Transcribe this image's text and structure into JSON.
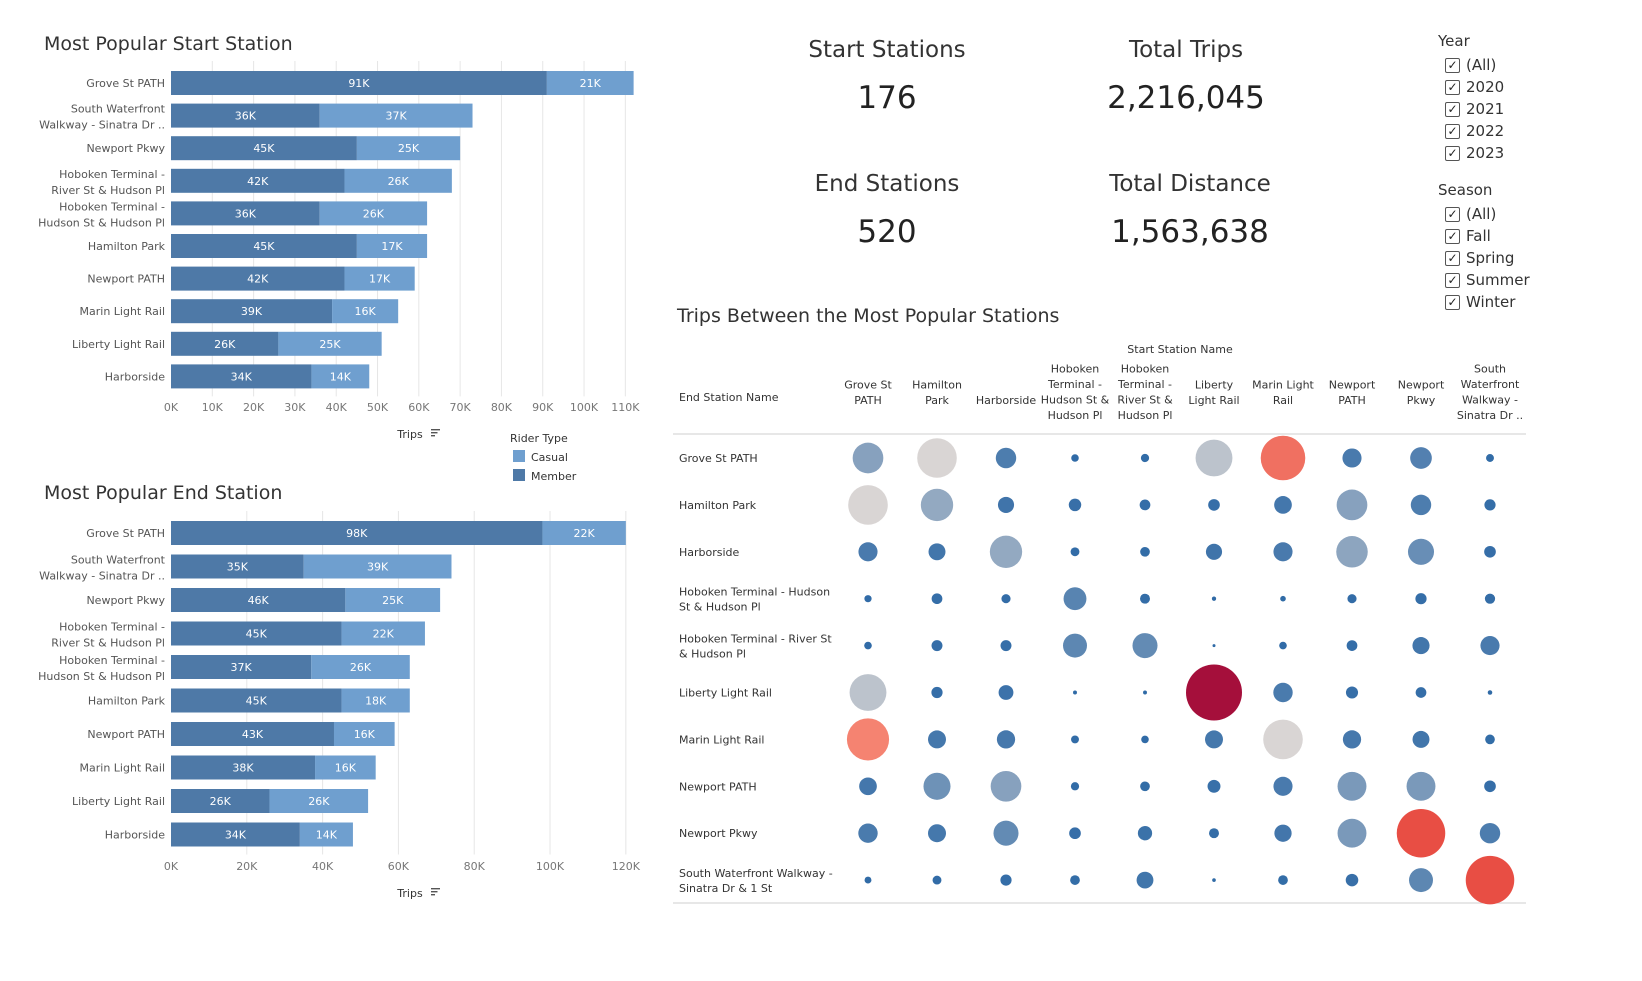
{
  "kpis": {
    "start_stations": {
      "label": "Start Stations",
      "value": "176"
    },
    "total_trips": {
      "label": "Total Trips",
      "value": "2,216,045"
    },
    "end_stations": {
      "label": "End Stations",
      "value": "520"
    },
    "total_distance": {
      "label": "Total Distance",
      "value": "1,563,638"
    }
  },
  "filters": {
    "year": {
      "title": "Year",
      "options": [
        "(All)",
        "2020",
        "2021",
        "2022",
        "2023"
      ]
    },
    "season": {
      "title": "Season",
      "options": [
        "(All)",
        "Fall",
        "Spring",
        "Summer",
        "Winter"
      ]
    }
  },
  "legend": {
    "title": "Rider Type",
    "items": [
      "Casual",
      "Member"
    ]
  },
  "colors": {
    "member": "#4e79a7",
    "casual": "#6f9fcf",
    "text_on_bar": "#ffffff",
    "axis_text": "#777777",
    "grid": "#e6e6e6"
  },
  "chart_data": [
    {
      "type": "bar",
      "orientation": "horizontal",
      "stacked": true,
      "title": "Most Popular Start Station",
      "xlabel": "Trips",
      "xlim": [
        0,
        115000
      ],
      "xticks": [
        "0K",
        "10K",
        "20K",
        "30K",
        "40K",
        "50K",
        "60K",
        "70K",
        "80K",
        "90K",
        "100K",
        "110K"
      ],
      "xtick_values": [
        0,
        10000,
        20000,
        30000,
        40000,
        50000,
        60000,
        70000,
        80000,
        90000,
        100000,
        110000
      ],
      "categories": [
        [
          "Grove St PATH"
        ],
        [
          "South Waterfront",
          "Walkway - Sinatra Dr .."
        ],
        [
          "Newport Pkwy"
        ],
        [
          "Hoboken Terminal -",
          "River St & Hudson Pl"
        ],
        [
          "Hoboken Terminal -",
          "Hudson St & Hudson Pl"
        ],
        [
          "Hamilton Park"
        ],
        [
          "Newport PATH"
        ],
        [
          "Marin Light Rail"
        ],
        [
          "Liberty Light Rail"
        ],
        [
          "Harborside"
        ]
      ],
      "series": [
        {
          "name": "Member",
          "values": [
            91000,
            36000,
            45000,
            42000,
            36000,
            45000,
            42000,
            39000,
            26000,
            34000
          ],
          "labels": [
            "91K",
            "36K",
            "45K",
            "42K",
            "36K",
            "45K",
            "42K",
            "39K",
            "26K",
            "34K"
          ]
        },
        {
          "name": "Casual",
          "values": [
            21000,
            37000,
            25000,
            26000,
            26000,
            17000,
            17000,
            16000,
            25000,
            14000
          ],
          "labels": [
            "21K",
            "37K",
            "25K",
            "26K",
            "26K",
            "17K",
            "17K",
            "16K",
            "25K",
            "14K"
          ]
        }
      ]
    },
    {
      "type": "bar",
      "orientation": "horizontal",
      "stacked": true,
      "title": "Most Popular End Station",
      "xlabel": "Trips",
      "xlim": [
        0,
        124000
      ],
      "xticks": [
        "0K",
        "20K",
        "40K",
        "60K",
        "80K",
        "100K",
        "120K"
      ],
      "xtick_values": [
        0,
        20000,
        40000,
        60000,
        80000,
        100000,
        120000
      ],
      "categories": [
        [
          "Grove St PATH"
        ],
        [
          "South Waterfront",
          "Walkway - Sinatra Dr .."
        ],
        [
          "Newport Pkwy"
        ],
        [
          "Hoboken Terminal -",
          "River St & Hudson Pl"
        ],
        [
          "Hoboken Terminal -",
          "Hudson St & Hudson Pl"
        ],
        [
          "Hamilton Park"
        ],
        [
          "Newport PATH"
        ],
        [
          "Marin Light Rail"
        ],
        [
          "Liberty Light Rail"
        ],
        [
          "Harborside"
        ]
      ],
      "series": [
        {
          "name": "Member",
          "values": [
            98000,
            35000,
            46000,
            45000,
            37000,
            45000,
            43000,
            38000,
            26000,
            34000
          ],
          "labels": [
            "98K",
            "35K",
            "46K",
            "45K",
            "37K",
            "45K",
            "43K",
            "38K",
            "26K",
            "34K"
          ]
        },
        {
          "name": "Casual",
          "values": [
            22000,
            39000,
            25000,
            22000,
            26000,
            18000,
            16000,
            16000,
            26000,
            14000
          ],
          "labels": [
            "22K",
            "39K",
            "25K",
            "22K",
            "26K",
            "18K",
            "16K",
            "16K",
            "26K",
            "14K"
          ]
        }
      ]
    },
    {
      "type": "bubble-matrix",
      "title": "Trips Between the Most Popular Stations",
      "column_header": "Start Station Name",
      "row_header": "End Station Name",
      "columns": [
        [
          "Grove St",
          "PATH"
        ],
        [
          "Hamilton",
          "Park"
        ],
        [
          "Harborside"
        ],
        [
          "Hoboken",
          "Terminal -",
          "Hudson St &",
          "Hudson Pl"
        ],
        [
          "Hoboken",
          "Terminal -",
          "River St &",
          "Hudson Pl"
        ],
        [
          "Liberty",
          "Light Rail"
        ],
        [
          "Marin Light",
          "Rail"
        ],
        [
          "Newport",
          "PATH"
        ],
        [
          "Newport",
          "Pkwy"
        ],
        [
          "South",
          "Waterfront",
          "Walkway -",
          "Sinatra Dr .."
        ]
      ],
      "rows": [
        [
          "Grove St PATH"
        ],
        [
          "Hamilton Park"
        ],
        [
          "Harborside"
        ],
        [
          "Hoboken Terminal - Hudson",
          "St & Hudson Pl"
        ],
        [
          "Hoboken Terminal - River St",
          "& Hudson Pl"
        ],
        [
          "Liberty Light Rail"
        ],
        [
          "Marin Light Rail"
        ],
        [
          "Newport PATH"
        ],
        [
          "Newport Pkwy"
        ],
        [
          "South Waterfront Walkway -",
          "Sinatra Dr & 1 St"
        ]
      ],
      "values": [
        [
          1800,
          3000,
          800,
          110,
          130,
          2600,
          3800,
          700,
          900,
          120
        ],
        [
          3000,
          2000,
          500,
          300,
          220,
          260,
          600,
          1800,
          800,
          240
        ],
        [
          700,
          550,
          2000,
          150,
          180,
          500,
          700,
          1900,
          1300,
          260
        ],
        [
          100,
          220,
          160,
          1000,
          190,
          35,
          60,
          160,
          240,
          200
        ],
        [
          110,
          230,
          230,
          1100,
          1200,
          15,
          110,
          220,
          560,
          700
        ],
        [
          2600,
          240,
          420,
          30,
          30,
          6000,
          720,
          280,
          220,
          40
        ],
        [
          3400,
          620,
          640,
          120,
          110,
          620,
          3000,
          640,
          550,
          180
        ],
        [
          600,
          1400,
          1800,
          130,
          180,
          320,
          700,
          1600,
          1600,
          260
        ],
        [
          720,
          620,
          1200,
          260,
          390,
          190,
          570,
          1600,
          4500,
          800
        ],
        [
          90,
          150,
          240,
          180,
          540,
          25,
          180,
          300,
          1100,
          4500
        ]
      ],
      "color_scale": {
        "low": "#2f6aa6",
        "mid": "#d9d5d4",
        "high": "#a50f3b"
      }
    }
  ]
}
